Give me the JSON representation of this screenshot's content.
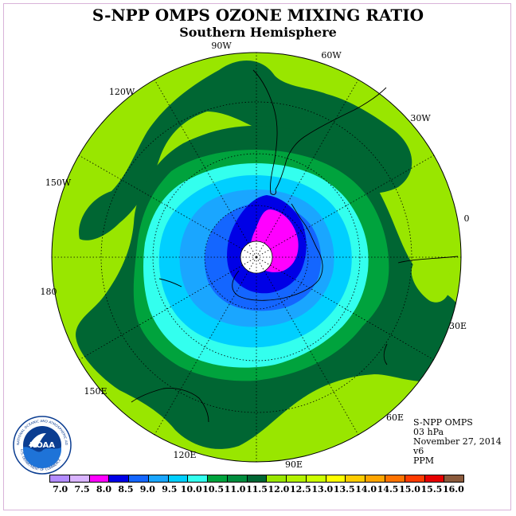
{
  "header": {
    "title": "S-NPP OMPS OZONE MIXING RATIO",
    "subtitle": "Southern Hemisphere"
  },
  "map": {
    "projection": "south polar stereographic",
    "longitude_labels": [
      "90W",
      "60W",
      "30W",
      "0",
      "30E",
      "60E",
      "90E",
      "120E",
      "150E",
      "180",
      "150W",
      "120W"
    ],
    "contour_colors": {
      "lime": "#99e600",
      "yellow_green": "#ccff00",
      "green": "#00a33d",
      "dark_green": "#006633",
      "turquoise": "#33ffee",
      "light_blue": "#00cfff",
      "sky_blue": "#1aa6ff",
      "blue": "#1466ff",
      "deep_blue": "#0000e6",
      "magenta": "#ff00ff"
    }
  },
  "info": {
    "instrument": "S-NPP OMPS",
    "level": "03 hPa",
    "date": "November 27, 2014",
    "version": "v6",
    "units": "PPM"
  },
  "logo": {
    "name": "NOAA",
    "ring_text": "NATIONAL OCEANIC AND ATMOSPHERIC ADMINISTRATION",
    "ring_text_bottom": "U.S. DEPARTMENT OF COMMERCE"
  },
  "colorbar": {
    "colors": [
      "#b38cff",
      "#d9b3ff",
      "#ff00ff",
      "#0000e6",
      "#1466ff",
      "#1aa6ff",
      "#00cfff",
      "#33ffee",
      "#00a33d",
      "#008c3d",
      "#006633",
      "#99e600",
      "#b3f200",
      "#ccff00",
      "#ffff00",
      "#ffcc00",
      "#ffa500",
      "#ff7300",
      "#ff3c00",
      "#e60000",
      "#8b5a3c"
    ],
    "ticks": [
      "7.0",
      "7.5",
      "8.0",
      "8.5",
      "9.0",
      "9.5",
      "10.0",
      "10.5",
      "11.0",
      "11.5",
      "12.0",
      "12.5",
      "13.0",
      "13.5",
      "14.0",
      "14.5",
      "15.0",
      "15.5",
      "16.0"
    ]
  }
}
